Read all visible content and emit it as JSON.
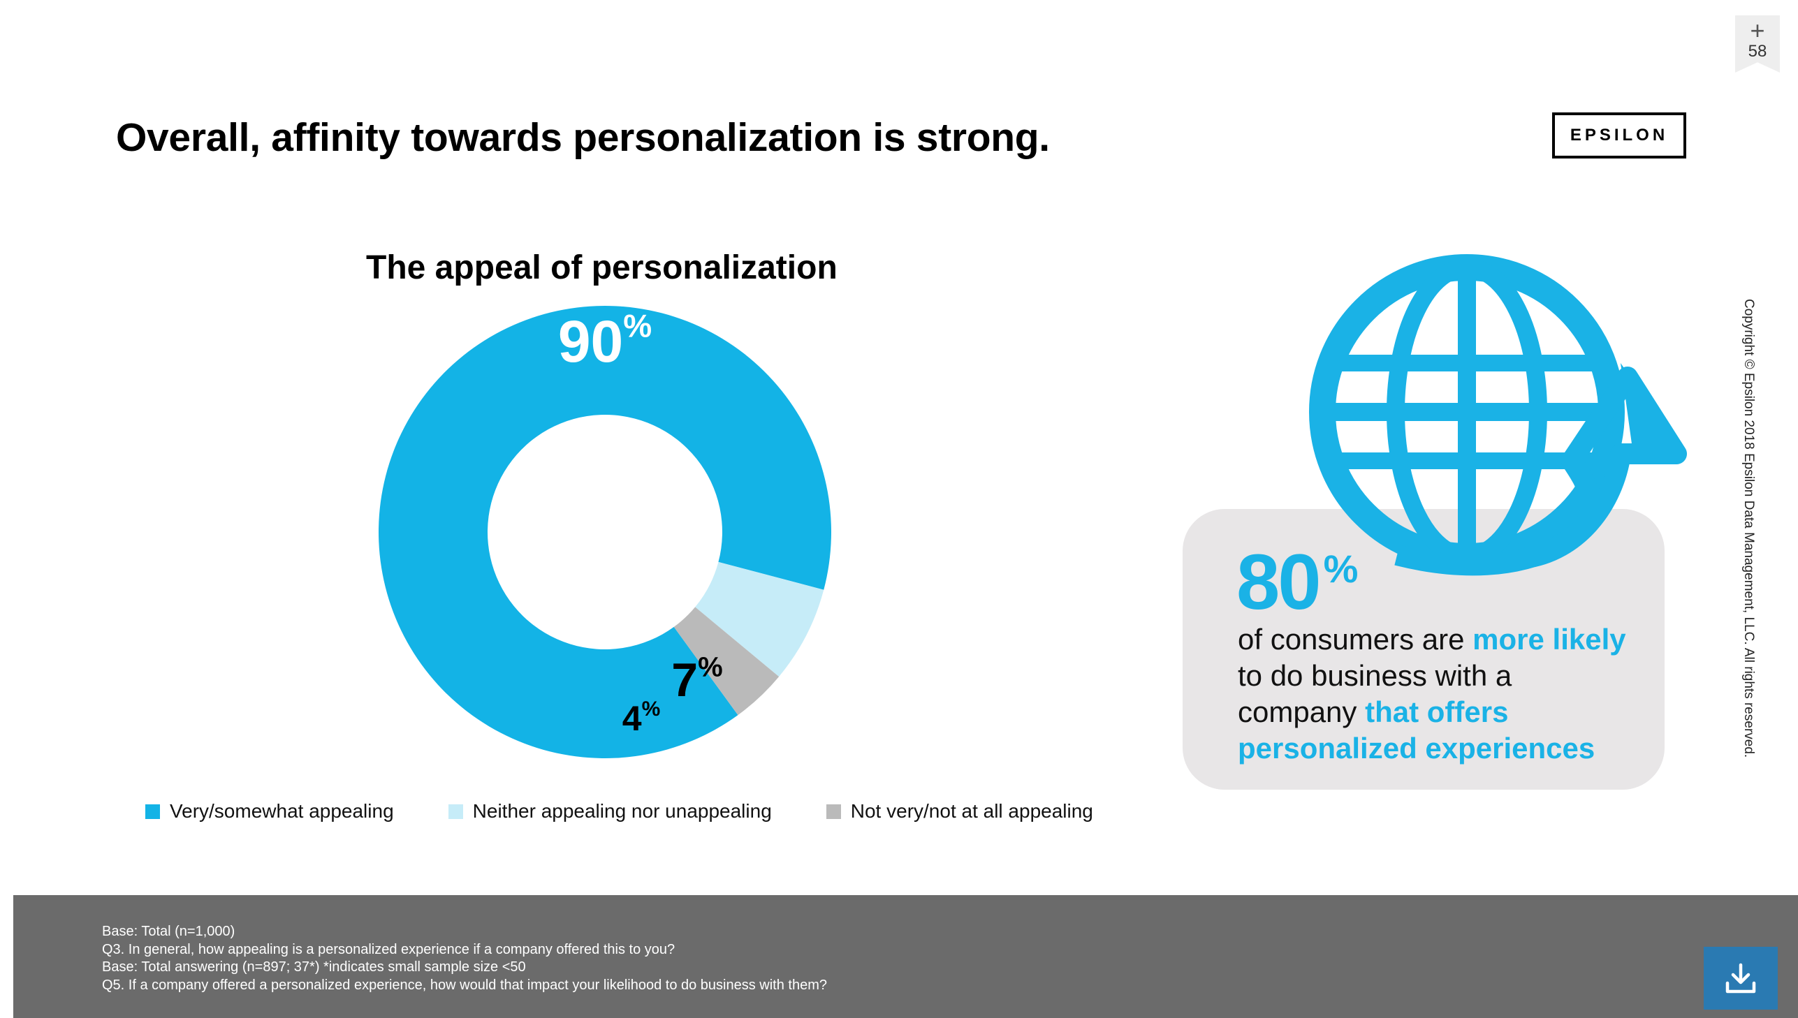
{
  "slide": {
    "title": "Overall, affinity towards personalization is strong.",
    "logo": "EPSILON",
    "bookmark_count": "58",
    "copyright": "Copyright © Epsilon 2018 Epsilon Data Management, LLC. All rights reserved."
  },
  "chart_data": {
    "type": "pie",
    "title": "The appeal of personalization",
    "categories": [
      "Very/somewhat appealing",
      "Neither appealing nor unappealing",
      "Not very/not at all appealing"
    ],
    "values": [
      90,
      7,
      4
    ],
    "unit": "%",
    "colors": [
      "#13b3e6",
      "#c6ecf8",
      "#bababa"
    ],
    "value_labels": [
      "90",
      "7",
      "4"
    ],
    "label_suffix": "%",
    "legend_position": "bottom"
  },
  "callout": {
    "stat": "80",
    "stat_suffix": "%",
    "text_1": "of consumers are ",
    "text_2": "more likely",
    "text_3": " to do business with a company ",
    "text_4": "that offers personalized experiences",
    "icon": "globe-arrow-icon",
    "accent_color": "#1ab2e6"
  },
  "footnotes": [
    "Base: Total (n=1,000)",
    "Q3. In general, how appealing is a personalized experience if a company offered this to you?",
    "Base: Total answering  (n=897; 37*) *indicates small sample size <50",
    "Q5. If a company offered a personalized experience, how would that impact your likelihood to do business with them?"
  ],
  "download_icon": "download-icon"
}
